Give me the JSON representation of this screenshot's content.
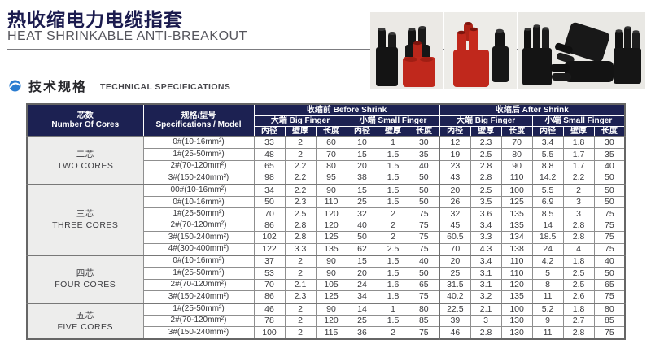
{
  "header": {
    "title_cn": "热收缩电力电缆指套",
    "title_en": "HEAT SHRINKABLE ANTI-BREAKOUT"
  },
  "section": {
    "title_cn": "技术规格",
    "title_en": "TECHNICAL SPECIFICATIONS"
  },
  "colors": {
    "table_header_navy": "#1c2152",
    "title_navy": "#1b1b4e",
    "bullet_blue": "#2a7cd0",
    "product_red": "#c0281c",
    "product_black": "#161616"
  },
  "table": {
    "cores_header_cn": "芯数",
    "cores_header_en": "Number Of Cores",
    "spec_header_cn": "规格/型号",
    "spec_header_en": "Specifications / Model",
    "before_shrink": "收缩前 Before Shrink",
    "after_shrink": "收缩后 After Shrink",
    "big_finger": "大端 Big Finger",
    "small_finger": "小端 Small Finger",
    "sub_headers": [
      "内径",
      "壁厚",
      "长度"
    ],
    "groups": [
      {
        "name_cn": "二芯",
        "name_en": "TWO CORES",
        "rows": [
          {
            "spec": "0#(10-16mm²)",
            "values": [
              33,
              2,
              60,
              10,
              1,
              30,
              12,
              2.3,
              70,
              3.4,
              1.8,
              30
            ]
          },
          {
            "spec": "1#(25-50mm²)",
            "values": [
              48,
              2,
              70,
              15,
              1.5,
              35,
              19,
              2.5,
              80,
              5.5,
              1.7,
              35
            ]
          },
          {
            "spec": "2#(70-120mm²)",
            "values": [
              65,
              2.2,
              80,
              20,
              1.5,
              40,
              23,
              2.8,
              90,
              8.8,
              1.7,
              40
            ]
          },
          {
            "spec": "3#(150-240mm²)",
            "values": [
              98,
              2.2,
              95,
              38,
              1.5,
              50,
              43,
              2.8,
              110,
              14.2,
              2.2,
              50
            ]
          }
        ]
      },
      {
        "name_cn": "三芯",
        "name_en": "THREE CORES",
        "rows": [
          {
            "spec": "00#(10-16mm²)",
            "values": [
              34,
              2.2,
              90,
              15,
              1.5,
              50,
              20,
              2.5,
              100,
              5.5,
              2,
              50
            ]
          },
          {
            "spec": "0#(10-16mm²)",
            "values": [
              50,
              2.3,
              110,
              25,
              1.5,
              50,
              26,
              3.5,
              125,
              6.9,
              3,
              50
            ]
          },
          {
            "spec": "1#(25-50mm²)",
            "values": [
              70,
              2.5,
              120,
              32,
              2,
              75,
              32,
              3.6,
              135,
              8.5,
              3,
              75
            ]
          },
          {
            "spec": "2#(70-120mm²)",
            "values": [
              86,
              2.8,
              120,
              40,
              2,
              75,
              45,
              3.4,
              135,
              14,
              2.8,
              75
            ]
          },
          {
            "spec": "3#(150-240mm²)",
            "values": [
              102,
              2.8,
              125,
              50,
              2,
              75,
              60.5,
              3.3,
              134,
              18.5,
              2.8,
              75
            ]
          },
          {
            "spec": "4#(300-400mm²)",
            "values": [
              122,
              3.3,
              135,
              62,
              2.5,
              75,
              70,
              4.3,
              138,
              24,
              4,
              75
            ]
          }
        ]
      },
      {
        "name_cn": "四芯",
        "name_en": "FOUR CORES",
        "rows": [
          {
            "spec": "0#(10-16mm²)",
            "values": [
              37,
              2,
              90,
              15,
              1.5,
              40,
              20,
              3.4,
              110,
              4.2,
              1.8,
              40
            ]
          },
          {
            "spec": "1#(25-50mm²)",
            "values": [
              53,
              2,
              90,
              20,
              1.5,
              50,
              25,
              3.1,
              110,
              5,
              2.5,
              50
            ]
          },
          {
            "spec": "2#(70-120mm²)",
            "values": [
              70,
              2.1,
              105,
              24,
              1.6,
              65,
              31.5,
              3.1,
              120,
              8,
              2.5,
              65
            ]
          },
          {
            "spec": "3#(150-240mm²)",
            "values": [
              86,
              2.3,
              125,
              34,
              1.8,
              75,
              40.2,
              3.2,
              135,
              11,
              2.6,
              75
            ]
          }
        ]
      },
      {
        "name_cn": "五芯",
        "name_en": "FIVE CORES",
        "rows": [
          {
            "spec": "1#(25-50mm²)",
            "values": [
              46,
              2,
              90,
              14,
              1,
              80,
              22.5,
              2.1,
              100,
              5.2,
              1.8,
              80
            ]
          },
          {
            "spec": "2#(70-120mm²)",
            "values": [
              78,
              2,
              120,
              25,
              1.5,
              85,
              39,
              3,
              130,
              9,
              2.7,
              85
            ]
          },
          {
            "spec": "3#(150-240mm²)",
            "values": [
              100,
              2,
              115,
              36,
              2,
              75,
              46,
              2.8,
              130,
              11,
              2.8,
              75
            ]
          }
        ]
      }
    ]
  }
}
